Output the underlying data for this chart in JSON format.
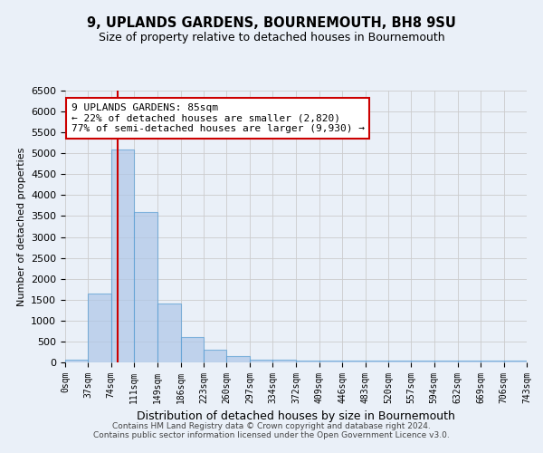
{
  "title": "9, UPLANDS GARDENS, BOURNEMOUTH, BH8 9SU",
  "subtitle": "Size of property relative to detached houses in Bournemouth",
  "xlabel": "Distribution of detached houses by size in Bournemouth",
  "ylabel": "Number of detached properties",
  "footnote1": "Contains HM Land Registry data © Crown copyright and database right 2024.",
  "footnote2": "Contains public sector information licensed under the Open Government Licence v3.0.",
  "bin_edges": [
    0,
    37,
    74,
    111,
    149,
    186,
    223,
    260,
    297,
    334,
    372,
    409,
    446,
    483,
    520,
    557,
    594,
    632,
    669,
    706,
    743
  ],
  "bar_heights": [
    75,
    1650,
    5100,
    3600,
    1400,
    600,
    300,
    150,
    75,
    75,
    50,
    50,
    50,
    50,
    50,
    50,
    50,
    50,
    50,
    50
  ],
  "bar_color": "#aec6e8",
  "bar_edge_color": "#5a9fd4",
  "bar_alpha": 0.7,
  "grid_color": "#cccccc",
  "background_color": "#eaf0f8",
  "property_size": 85,
  "red_line_color": "#cc0000",
  "annotation_line1": "9 UPLANDS GARDENS: 85sqm",
  "annotation_line2": "← 22% of detached houses are smaller (2,820)",
  "annotation_line3": "77% of semi-detached houses are larger (9,930) →",
  "annotation_box_color": "#ffffff",
  "annotation_box_edge_color": "#cc0000",
  "ylim": [
    0,
    6500
  ],
  "yticks": [
    0,
    500,
    1000,
    1500,
    2000,
    2500,
    3000,
    3500,
    4000,
    4500,
    5000,
    5500,
    6000,
    6500
  ]
}
